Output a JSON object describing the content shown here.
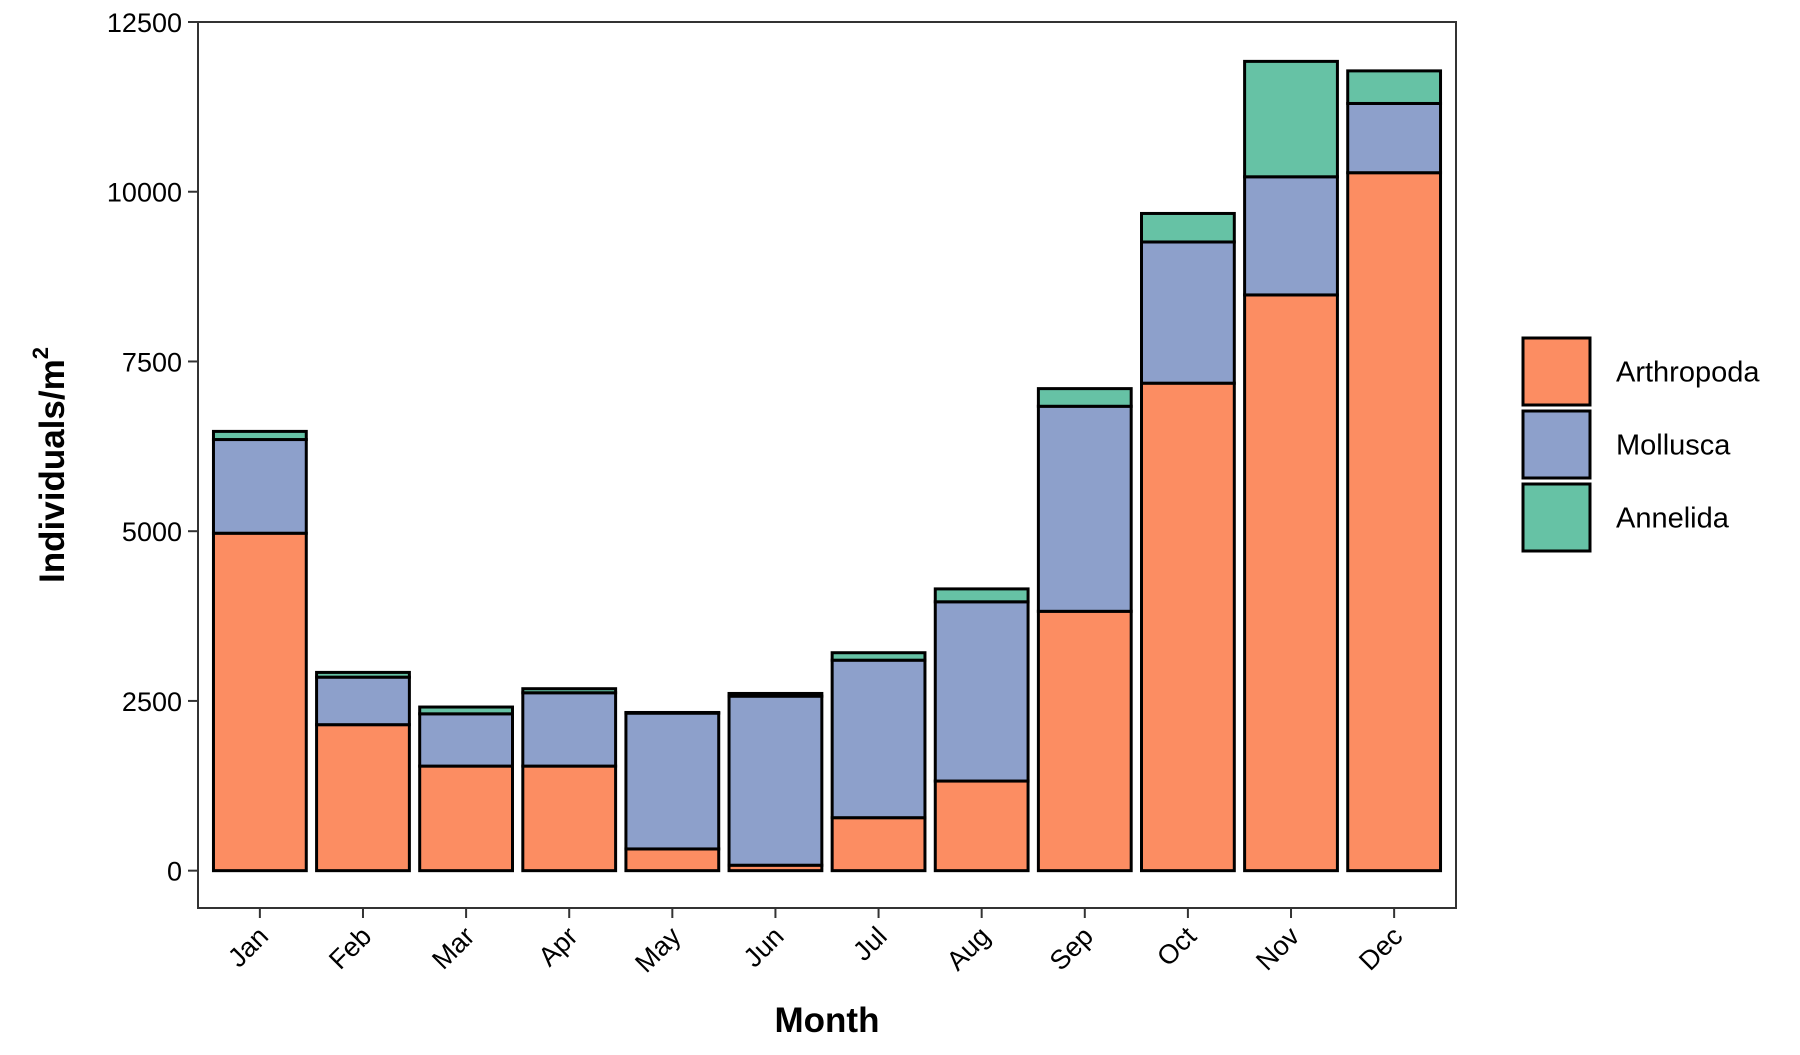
{
  "chart_data": {
    "type": "bar",
    "stacked": true,
    "title": "",
    "xlabel": "Month",
    "ylabel": "Individuals/m",
    "ylabel_superscript": "2",
    "categories": [
      "Jan",
      "Feb",
      "Mar",
      "Apr",
      "May",
      "Jun",
      "Jul",
      "Aug",
      "Sep",
      "Oct",
      "Nov",
      "Dec"
    ],
    "series": [
      {
        "name": "Arthropoda",
        "color": "#fc8d62",
        "values": [
          4970,
          2150,
          1540,
          1540,
          320,
          80,
          780,
          1320,
          3820,
          7180,
          8480,
          10280
        ]
      },
      {
        "name": "Mollusca",
        "color": "#8da0cb",
        "values": [
          1380,
          700,
          770,
          1080,
          2000,
          2490,
          2320,
          2640,
          3020,
          2080,
          1740,
          1020
        ]
      },
      {
        "name": "Annelida",
        "color": "#66c2a5",
        "values": [
          120,
          70,
          100,
          60,
          10,
          40,
          110,
          190,
          260,
          420,
          1700,
          480
        ]
      }
    ],
    "ylim": [
      -550,
      12500
    ],
    "yticks": [
      0,
      2500,
      5000,
      7500,
      10000,
      12500
    ],
    "ytick_labels": [
      "0",
      "2500",
      "5000",
      "7500",
      "10000",
      "12500"
    ],
    "grid": false,
    "legend_position": "right"
  }
}
